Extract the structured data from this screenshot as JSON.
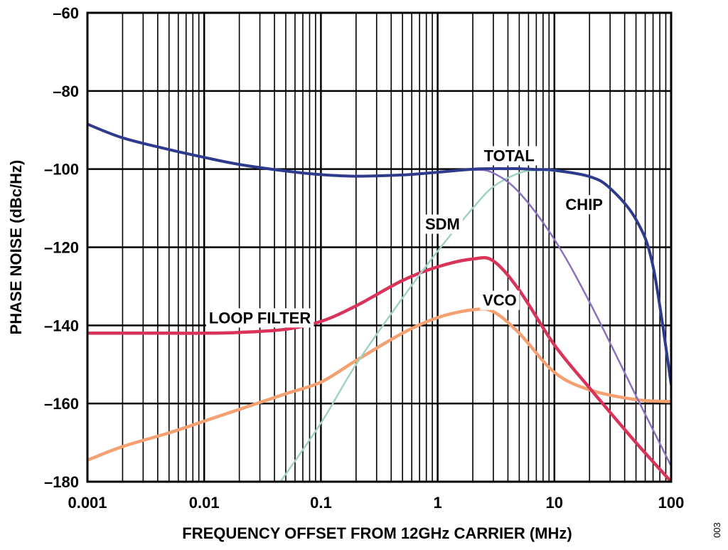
{
  "chart_data": {
    "type": "line",
    "title": "",
    "xlabel": "FREQUENCY OFFSET FROM 12GHz CARRIER (MHz)",
    "ylabel": "PHASE NOISE (dBc/Hz)",
    "xscale": "log",
    "xlim": [
      0.001,
      100
    ],
    "ylim": [
      -180,
      -60
    ],
    "grid": true,
    "x_ticks": [
      0.001,
      0.01,
      0.1,
      1,
      10,
      100
    ],
    "x_tick_labels": [
      "0.001",
      "0.01",
      "0.1",
      "1",
      "10",
      "100"
    ],
    "y_ticks": [
      -180,
      -160,
      -140,
      -120,
      -100,
      -80,
      -60
    ],
    "y_tick_labels": [
      "–180",
      "–160",
      "–140",
      "–120",
      "–100",
      "–80",
      "–60"
    ],
    "series": [
      {
        "name": "VCO",
        "color": "#f5a070",
        "x": [
          0.001,
          0.002,
          0.005,
          0.01,
          0.02,
          0.05,
          0.1,
          0.2,
          0.5,
          1,
          2,
          3,
          5,
          10,
          20,
          50,
          100
        ],
        "y": [
          -174.5,
          -171,
          -167.5,
          -164.5,
          -161.5,
          -157.5,
          -154.5,
          -149,
          -142,
          -138,
          -136,
          -136.5,
          -142,
          -152,
          -156.5,
          -159,
          -159.5
        ]
      },
      {
        "name": "LOOP FILTER",
        "color": "#d8345a",
        "x": [
          0.001,
          0.002,
          0.005,
          0.01,
          0.02,
          0.05,
          0.1,
          0.2,
          0.5,
          1,
          2,
          3,
          5,
          10,
          20,
          50,
          100
        ],
        "y": [
          -142,
          -142,
          -142,
          -142,
          -141.8,
          -141,
          -139,
          -135,
          -128.5,
          -125,
          -123,
          -123.5,
          -131,
          -145,
          -156,
          -170,
          -180
        ]
      },
      {
        "name": "SDM",
        "color": "#9fd3c0",
        "x": [
          0.045,
          0.1,
          0.2,
          0.5,
          1,
          2,
          3,
          5,
          7,
          10,
          20,
          30,
          50,
          70,
          100
        ],
        "y": [
          -180,
          -165,
          -150,
          -133,
          -121,
          -110,
          -104.5,
          -101,
          -100.3,
          -100.5,
          -102,
          -105,
          -113,
          -125,
          -155
        ]
      },
      {
        "name": "CHIP",
        "color": "#8a70c0",
        "x": [
          0.001,
          0.002,
          0.005,
          0.01,
          0.02,
          0.05,
          0.1,
          0.2,
          0.5,
          1,
          2,
          3,
          5,
          10,
          20,
          50,
          100
        ],
        "y": [
          -88.5,
          -92,
          -95,
          -97,
          -98.8,
          -100.5,
          -101.4,
          -101.8,
          -101.5,
          -100.8,
          -100.2,
          -101,
          -106,
          -118,
          -134,
          -158,
          -176
        ]
      },
      {
        "name": "TOTAL",
        "color": "#2e3a8c",
        "x": [
          0.001,
          0.002,
          0.005,
          0.01,
          0.02,
          0.05,
          0.1,
          0.2,
          0.5,
          1,
          2,
          3,
          4,
          5,
          7,
          10,
          20,
          30,
          50,
          70,
          100
        ],
        "y": [
          -88.5,
          -92,
          -95,
          -97,
          -98.8,
          -100.5,
          -101.4,
          -101.8,
          -101.5,
          -100.8,
          -100,
          -99.9,
          -99.9,
          -99.9,
          -100.1,
          -100.3,
          -101.9,
          -104.9,
          -112.9,
          -124.9,
          -155
        ]
      }
    ],
    "annotations": [
      {
        "text": "TOTAL",
        "x": 4.1,
        "y": -96.5
      },
      {
        "text": "CHIP",
        "x": 18,
        "y": -109
      },
      {
        "text": "SDM",
        "x": 1.1,
        "y": -114
      },
      {
        "text": "VCO",
        "x": 3.4,
        "y": -133.5
      },
      {
        "text": "LOOP FILTER",
        "x": 0.03,
        "y": -138
      },
      {
        "text": "003"
      }
    ]
  }
}
